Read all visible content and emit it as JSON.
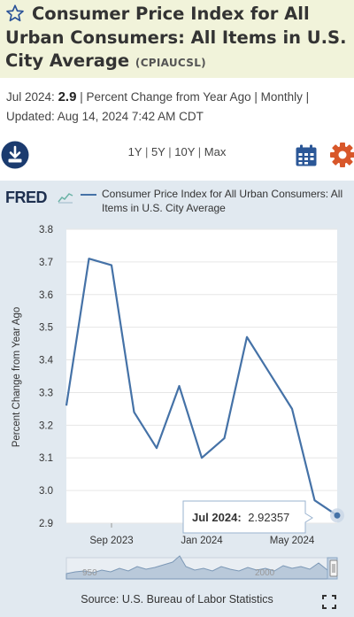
{
  "header": {
    "title": "Consumer Price Index for All Urban Consumers: All Items in U.S. City Average",
    "series_code": "(CPIAUCSL)"
  },
  "meta": {
    "period": "Jul 2024:",
    "value": "2.9",
    "units": "Percent Change from Year Ago",
    "frequency": "Monthly",
    "updated": "Updated: Aug 14, 2024 7:42 AM CDT"
  },
  "toolbar": {
    "ranges": [
      "1Y",
      "5Y",
      "10Y",
      "Max"
    ],
    "download_icon": "download-icon",
    "calendar_icon": "calendar-icon",
    "settings_icon": "gear-icon"
  },
  "chart_data": {
    "type": "line",
    "logo": "FRED",
    "legend": "Consumer Price Index for All Urban Consumers: All Items in U.S. City Average",
    "ylabel": "Percent Change from Year Ago",
    "ylim": [
      2.9,
      3.8
    ],
    "yticks": [
      "3.8",
      "3.7",
      "3.6",
      "3.5",
      "3.4",
      "3.3",
      "3.2",
      "3.1",
      "3.0",
      "2.9"
    ],
    "xticks": [
      "Sep 2023",
      "Jan 2024",
      "May 2024"
    ],
    "x": [
      "Jul 2023",
      "Aug 2023",
      "Sep 2023",
      "Oct 2023",
      "Nov 2023",
      "Dec 2023",
      "Jan 2024",
      "Feb 2024",
      "Mar 2024",
      "Apr 2024",
      "May 2024",
      "Jun 2024",
      "Jul 2024"
    ],
    "values": [
      3.26,
      3.71,
      3.69,
      3.24,
      3.13,
      3.32,
      3.1,
      3.16,
      3.47,
      3.36,
      3.25,
      2.97,
      2.92357
    ],
    "series_color": "#4572a7",
    "tooltip": {
      "label": "Jul 2024:",
      "value": "2.92357"
    },
    "navigator_labels": [
      "950",
      "2000"
    ],
    "source": "Source: U.S. Bureau of Labor Statistics"
  }
}
